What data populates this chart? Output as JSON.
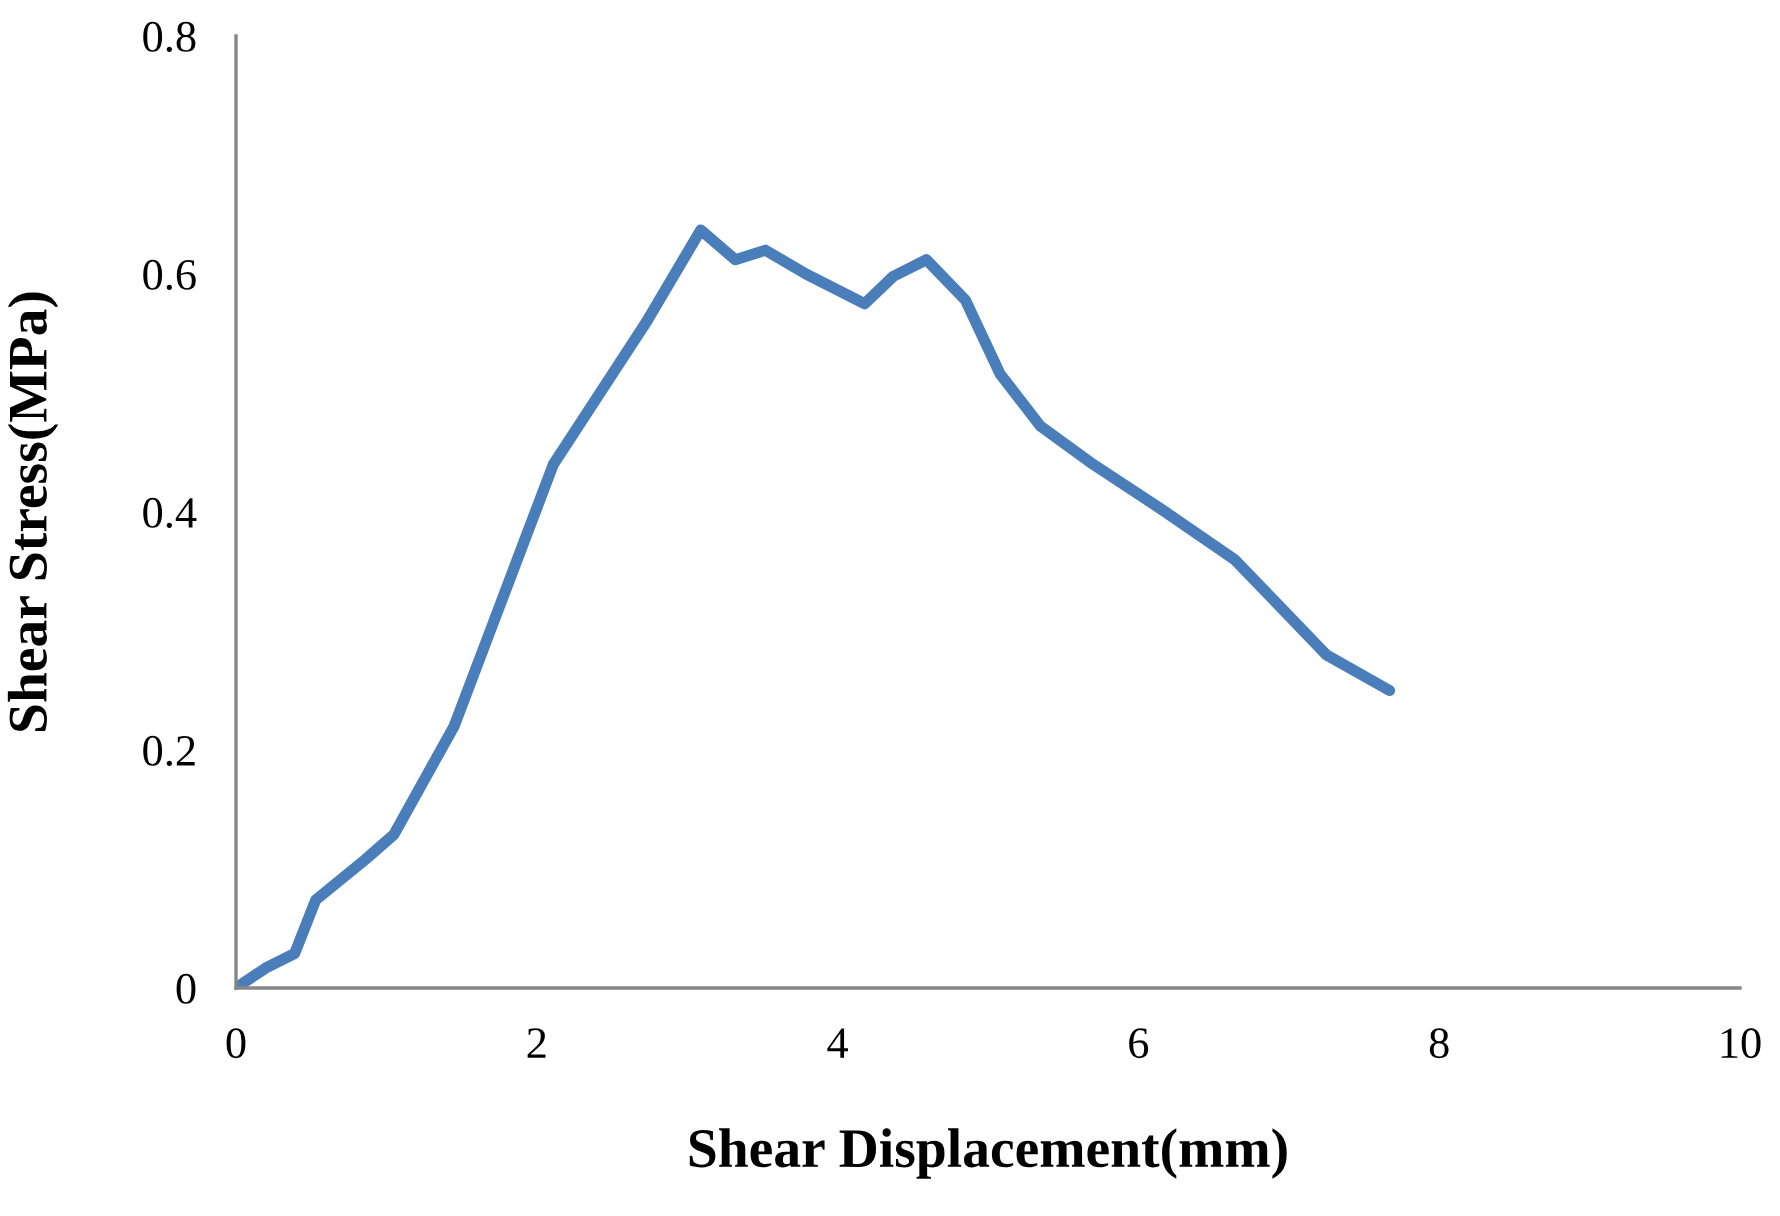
{
  "chart_data": {
    "type": "line",
    "xlabel": "Shear Displacement(mm)",
    "ylabel": "Shear Stress(MPa)",
    "xlim": [
      0,
      10
    ],
    "xticks": [
      0,
      2,
      4,
      6,
      8,
      10
    ],
    "ylim": [
      0,
      0.8
    ],
    "yticks": [
      0,
      0.2,
      0.4,
      0.6,
      0.8
    ],
    "grid": false,
    "legend": false,
    "marker": "none",
    "line_style": "solid",
    "series": [
      {
        "color": "#4a7ebb",
        "x": [
          0,
          0.2,
          0.39,
          0.53,
          0.86,
          1.05,
          1.45,
          1.72,
          2.11,
          2.42,
          2.73,
          3.09,
          3.32,
          3.52,
          3.79,
          4.18,
          4.37,
          4.59,
          4.85,
          5.08,
          5.35,
          5.7,
          6.18,
          6.64,
          7.25,
          7.67
        ],
        "values": [
          0,
          0.017,
          0.029,
          0.074,
          0.108,
          0.129,
          0.22,
          0.31,
          0.44,
          0.5,
          0.56,
          0.637,
          0.612,
          0.62,
          0.6,
          0.575,
          0.598,
          0.612,
          0.578,
          0.516,
          0.472,
          0.44,
          0.4,
          0.36,
          0.28,
          0.25
        ]
      }
    ]
  }
}
